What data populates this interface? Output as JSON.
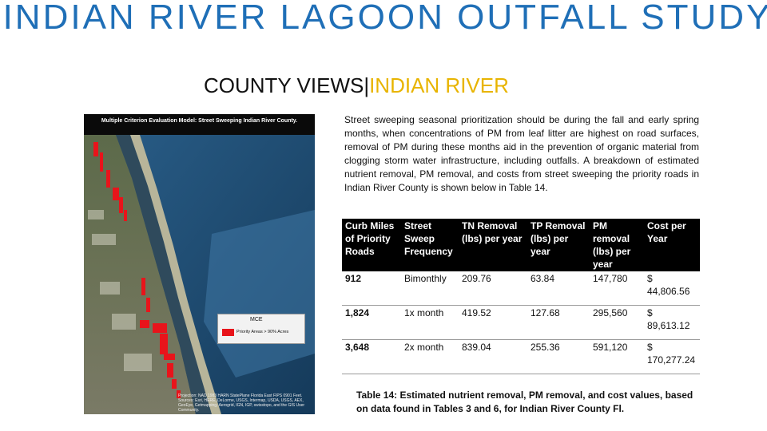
{
  "slide": {
    "title": "INDIAN RIVER LAGOON OUTFALL STUDY",
    "subtitle_main": "COUNTY VIEWS|",
    "subtitle_accent": "INDIAN RIVER"
  },
  "map": {
    "title": "Multiple Criterion Evaluation Model: Street Sweeping Indian River County.",
    "legend_title": "MCE",
    "legend_item": "Priority Areas > 90% Acres",
    "credit": "Projection: NAD 1983 HARN StatePlane Florida East FIPS 0901 Feet. Sources: Esri, HERE, DeLorme, USGS, Intermap, USDA, USGS, AEX, GeoEye, Getmapping, Aerogrid, IGN, IGP, swisstopo, and the GIS User Community.",
    "colors": {
      "priority": "#e8141b",
      "ocean": "#1f4e73"
    }
  },
  "paragraph": "Street sweeping seasonal prioritization should be during the fall and early spring months, when concentrations of PM from leaf litter are highest on road surfaces, removal of PM during these months aid in the prevention of organic material from clogging storm water infrastructure, including outfalls. A breakdown of estimated nutrient removal, PM removal, and costs from street sweeping the priority roads in Indian River County is shown below in Table 14.",
  "table": {
    "headers": [
      "Curb Miles of Priority Roads",
      "Street Sweep Frequency",
      "TN Removal (lbs) per year",
      "TP Removal (lbs) per year",
      "PM removal (lbs) per year",
      "Cost per Year"
    ],
    "rows": [
      [
        "912",
        "Bimonthly",
        "209.76",
        "63.84",
        "147,780",
        "$ 44,806.56"
      ],
      [
        "1,824",
        "1x month",
        "419.52",
        "127.68",
        "295,560",
        "$ 89,613.12"
      ],
      [
        "3,648",
        "2x month",
        "839.04",
        "255.36",
        "591,120",
        "$ 170,277.24"
      ]
    ],
    "caption": "Table 14: Estimated nutrient removal, PM removal, and cost values, based on data found in Tables 3 and 6, for Indian River County Fl."
  }
}
